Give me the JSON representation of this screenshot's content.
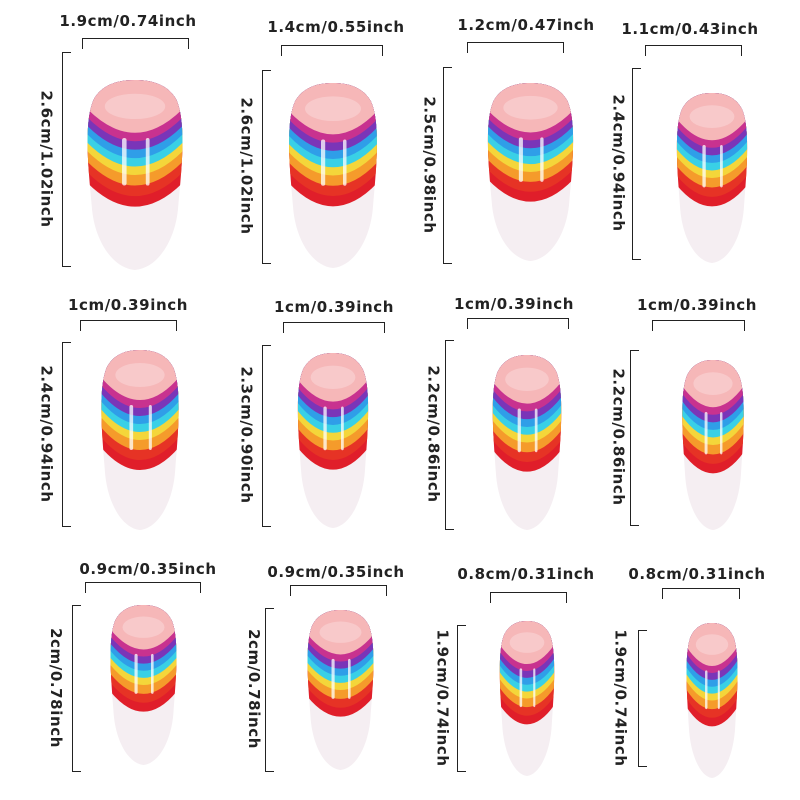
{
  "colors": {
    "nail_base": "#f6b7b8",
    "nail_tip": "#f5eef2",
    "rainbow": [
      "#c8328f",
      "#7a35b8",
      "#2f9ee8",
      "#39d0e6",
      "#f4d63a",
      "#f59b2b",
      "#e63325",
      "#e01e2a"
    ],
    "lines": "#222222"
  },
  "nails": [
    {
      "width_label": "1.9cm/0.74inch",
      "height_label": "2.6cm/1.02inch"
    },
    {
      "width_label": "1.4cm/0.55inch",
      "height_label": "2.6cm/1.02inch"
    },
    {
      "width_label": "1.2cm/0.47inch",
      "height_label": "2.5cm/0.98inch"
    },
    {
      "width_label": "1.1cm/0.43inch",
      "height_label": "2.4cm/0.94inch"
    },
    {
      "width_label": "1cm/0.39inch",
      "height_label": "2.4cm/0.94inch"
    },
    {
      "width_label": "1cm/0.39inch",
      "height_label": "2.3cm/0.90inch"
    },
    {
      "width_label": "1cm/0.39inch",
      "height_label": "2.2cm/0.86inch"
    },
    {
      "width_label": "1cm/0.39inch",
      "height_label": "2.2cm/0.86inch"
    },
    {
      "width_label": "0.9cm/0.35inch",
      "height_label": "2cm/0.78inch"
    },
    {
      "width_label": "0.9cm/0.35inch",
      "height_label": "2cm/0.78inch"
    },
    {
      "width_label": "0.8cm/0.31inch",
      "height_label": "1.9cm/0.74inch"
    },
    {
      "width_label": "0.8cm/0.31inch",
      "height_label": "1.9cm/0.74inch"
    }
  ]
}
